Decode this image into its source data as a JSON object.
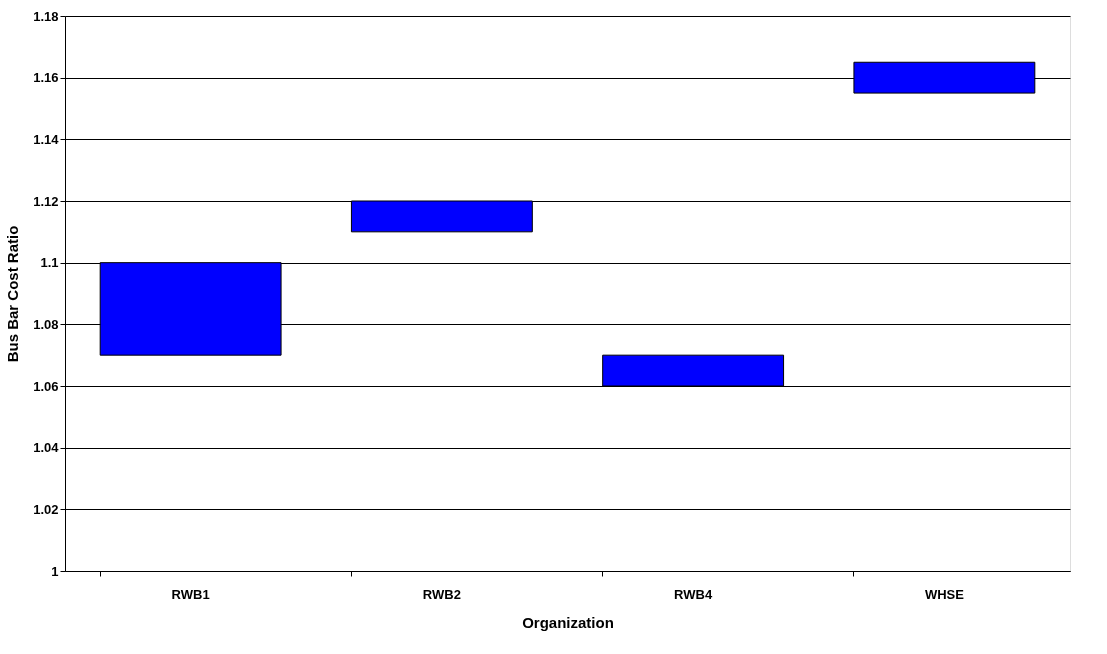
{
  "chart_data": {
    "type": "bar",
    "xlabel": "Organization",
    "ylabel": "Bus Bar Cost Ratio",
    "categories": [
      "RWB1",
      "RWB2",
      "RWB4",
      "WHSE"
    ],
    "base": [
      1.07,
      1.11,
      1.06,
      1.155
    ],
    "values": [
      0.03,
      0.01,
      0.01,
      0.01
    ],
    "color": "#0000ff",
    "ylim": [
      1,
      1.18
    ],
    "yticks": [
      1,
      1.02,
      1.04,
      1.06,
      1.08,
      1.1,
      1.12,
      1.14,
      1.16,
      1.18
    ],
    "grid": "y"
  }
}
